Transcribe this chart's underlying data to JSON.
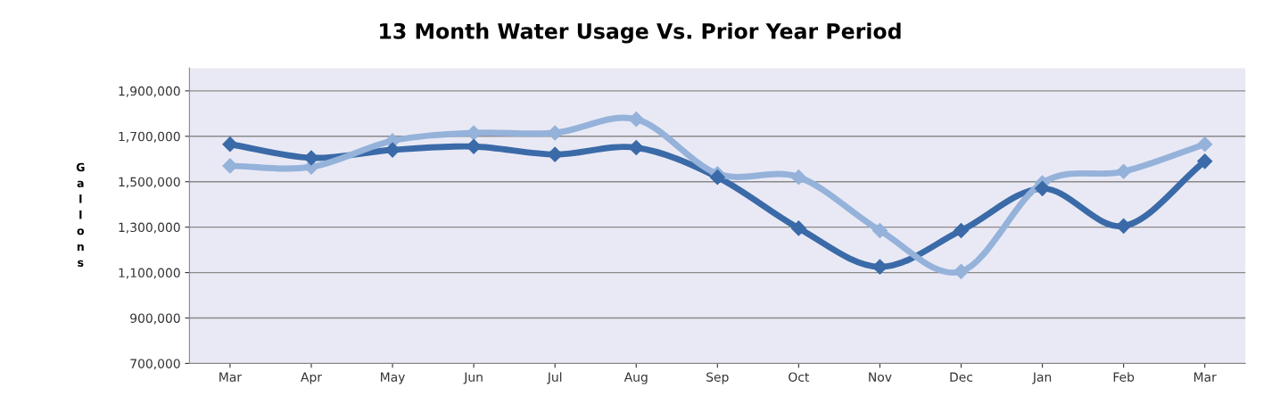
{
  "chart_data": {
    "type": "line",
    "title": "13 Month Water Usage Vs. Prior Year Period",
    "ylabel": "Gallons",
    "categories": [
      "Mar",
      "Apr",
      "May",
      "Jun",
      "Jul",
      "Aug",
      "Sep",
      "Oct",
      "Nov",
      "Dec",
      "Jan",
      "Feb",
      "Mar"
    ],
    "series": [
      {
        "color": "#3b6aa8",
        "values": [
          1665000,
          1605000,
          1640000,
          1655000,
          1620000,
          1650000,
          1520000,
          1295000,
          1125000,
          1285000,
          1470000,
          1305000,
          1590000
        ]
      },
      {
        "color": "#95b2da",
        "values": [
          1570000,
          1565000,
          1680000,
          1715000,
          1715000,
          1775000,
          1535000,
          1520000,
          1285000,
          1105000,
          1495000,
          1545000,
          1665000
        ]
      }
    ],
    "ylim": [
      700000,
      2000000
    ],
    "yticks": [
      {
        "value": 700000,
        "label": "700,000"
      },
      {
        "value": 900000,
        "label": "900,000"
      },
      {
        "value": 1100000,
        "label": "1,100,000"
      },
      {
        "value": 1300000,
        "label": "1,300,000"
      },
      {
        "value": 1500000,
        "label": "1,500,000"
      },
      {
        "value": 1700000,
        "label": "1,700,000"
      },
      {
        "value": 1900000,
        "label": "1,900,000"
      }
    ],
    "grid": "y",
    "marker": "diamond",
    "line_style": "solid",
    "legend": false
  }
}
